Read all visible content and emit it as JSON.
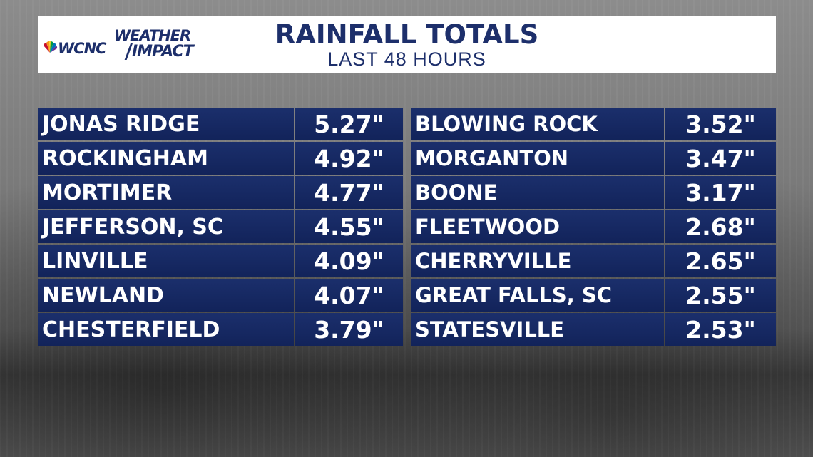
{
  "header": {
    "logo_wcnc": "WCNC",
    "logo_weather": "WEATHER",
    "logo_impact": "IMPACT",
    "title": "RAINFALL TOTALS",
    "subtitle": "LAST 48 HOURS"
  },
  "colors": {
    "panel_navy": "#1b2f6c",
    "title_navy": "#1d2f6b",
    "header_bg": "#ffffff",
    "text": "#ffffff"
  },
  "chart_data": {
    "type": "table",
    "title": "RAINFALL TOTALS",
    "subtitle": "LAST 48 HOURS",
    "left_column": [
      {
        "location": "JONAS RIDGE",
        "rainfall": "5.27\""
      },
      {
        "location": "ROCKINGHAM",
        "rainfall": "4.92\""
      },
      {
        "location": "MORTIMER",
        "rainfall": "4.77\""
      },
      {
        "location": "JEFFERSON, SC",
        "rainfall": "4.55\""
      },
      {
        "location": "LINVILLE",
        "rainfall": "4.09\""
      },
      {
        "location": "NEWLAND",
        "rainfall": "4.07\""
      },
      {
        "location": "CHESTERFIELD",
        "rainfall": "3.79\""
      }
    ],
    "right_column": [
      {
        "location": "BLOWING ROCK",
        "rainfall": "3.52\""
      },
      {
        "location": "MORGANTON",
        "rainfall": "3.47\""
      },
      {
        "location": "BOONE",
        "rainfall": "3.17\""
      },
      {
        "location": "FLEETWOOD",
        "rainfall": "2.68\""
      },
      {
        "location": "CHERRYVILLE",
        "rainfall": "2.65\""
      },
      {
        "location": "GREAT FALLS, SC",
        "rainfall": "2.55\""
      },
      {
        "location": "STATESVILLE",
        "rainfall": "2.53\""
      }
    ]
  }
}
